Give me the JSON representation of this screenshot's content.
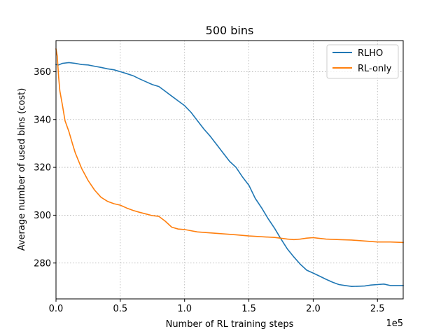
{
  "chart_data": {
    "type": "line",
    "title": "500 bins",
    "xlabel": "Number of RL training steps",
    "ylabel": "Average number of used bins (cost)",
    "x_offset_label": "1e5",
    "xlim": [
      0,
      2.7
    ],
    "ylim": [
      265,
      373
    ],
    "x_ticks": [
      0.0,
      0.5,
      1.0,
      1.5,
      2.0,
      2.5
    ],
    "x_tick_labels": [
      "0.0",
      "0.5",
      "1.0",
      "1.5",
      "2.0",
      "2.5"
    ],
    "y_ticks": [
      280,
      300,
      320,
      340,
      360
    ],
    "y_tick_labels": [
      "280",
      "300",
      "320",
      "340",
      "360"
    ],
    "grid": true,
    "legend_position": "top-right",
    "series": [
      {
        "name": "RLHO",
        "color": "#1f77b4",
        "x": [
          0,
          0.02,
          0.05,
          0.1,
          0.15,
          0.2,
          0.25,
          0.3,
          0.35,
          0.4,
          0.45,
          0.5,
          0.55,
          0.6,
          0.65,
          0.7,
          0.75,
          0.8,
          0.85,
          0.9,
          0.95,
          1.0,
          1.05,
          1.1,
          1.15,
          1.2,
          1.25,
          1.3,
          1.35,
          1.4,
          1.45,
          1.5,
          1.55,
          1.6,
          1.65,
          1.7,
          1.75,
          1.8,
          1.85,
          1.9,
          1.95,
          2.0,
          2.05,
          2.1,
          2.15,
          2.2,
          2.25,
          2.3,
          2.35,
          2.4,
          2.45,
          2.5,
          2.55,
          2.6,
          2.65,
          2.7
        ],
        "y": [
          363,
          362.8,
          363.5,
          363.8,
          363.5,
          363.0,
          362.8,
          362.3,
          361.8,
          361.2,
          360.8,
          360.0,
          359.2,
          358.3,
          357.0,
          355.8,
          354.6,
          353.8,
          351.8,
          349.8,
          347.8,
          345.8,
          343.0,
          339.5,
          336.0,
          333.0,
          329.5,
          326.0,
          322.5,
          320.0,
          316.0,
          312.5,
          307.0,
          303.0,
          298.5,
          294.5,
          290.0,
          285.8,
          282.5,
          279.5,
          277.0,
          275.8,
          274.5,
          273.2,
          272.0,
          271.0,
          270.6,
          270.2,
          270.3,
          270.4,
          270.8,
          271.0,
          271.2,
          270.6,
          270.6,
          270.6
        ]
      },
      {
        "name": "RL-only",
        "color": "#ff7f0e",
        "x": [
          0,
          0.01,
          0.02,
          0.03,
          0.05,
          0.07,
          0.1,
          0.13,
          0.15,
          0.2,
          0.25,
          0.3,
          0.35,
          0.4,
          0.45,
          0.5,
          0.55,
          0.6,
          0.65,
          0.7,
          0.75,
          0.8,
          0.85,
          0.9,
          0.95,
          1.0,
          1.05,
          1.1,
          1.2,
          1.3,
          1.4,
          1.5,
          1.6,
          1.7,
          1.8,
          1.85,
          1.9,
          1.95,
          2.0,
          2.05,
          2.1,
          2.2,
          2.3,
          2.4,
          2.5,
          2.6,
          2.7
        ],
        "y": [
          369.5,
          366.5,
          358.0,
          352.0,
          346.0,
          339.5,
          335.0,
          329.5,
          326.0,
          319.5,
          314.5,
          310.5,
          307.5,
          305.8,
          304.8,
          304.2,
          303.0,
          302.0,
          301.2,
          300.5,
          299.8,
          299.5,
          297.5,
          295.0,
          294.2,
          294.0,
          293.5,
          293.0,
          292.6,
          292.2,
          291.8,
          291.3,
          291.0,
          290.7,
          290.0,
          289.8,
          290.0,
          290.4,
          290.6,
          290.3,
          290.0,
          289.8,
          289.6,
          289.2,
          288.8,
          288.8,
          288.6
        ]
      }
    ]
  }
}
